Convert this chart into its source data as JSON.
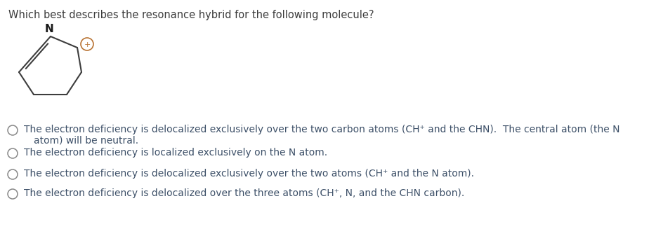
{
  "title": "Which best describes the resonance hybrid for the following molecule?",
  "title_fontsize": 10.5,
  "title_color": "#3d3d3d",
  "background_color": "#ffffff",
  "options": [
    "The electron deficiency is delocalized exclusively over the two carbon atoms (CH⁺ and the CHN).  The central atom (the N\natom) will be neutral.",
    "The electron deficiency is localized exclusively on the N atom.",
    "The electron deficiency is delocalized exclusively over the two atoms (CH⁺ and the N atom).",
    "The electron deficiency is delocalized over the three atoms (CH⁺, N, and the CHN carbon)."
  ],
  "option_fontsize": 10,
  "option_color": "#3d5068",
  "circle_color": "#888888",
  "bond_color": "#3d3d3d",
  "N_color": "#1a1a1a",
  "plus_circle_color": "#b87333"
}
